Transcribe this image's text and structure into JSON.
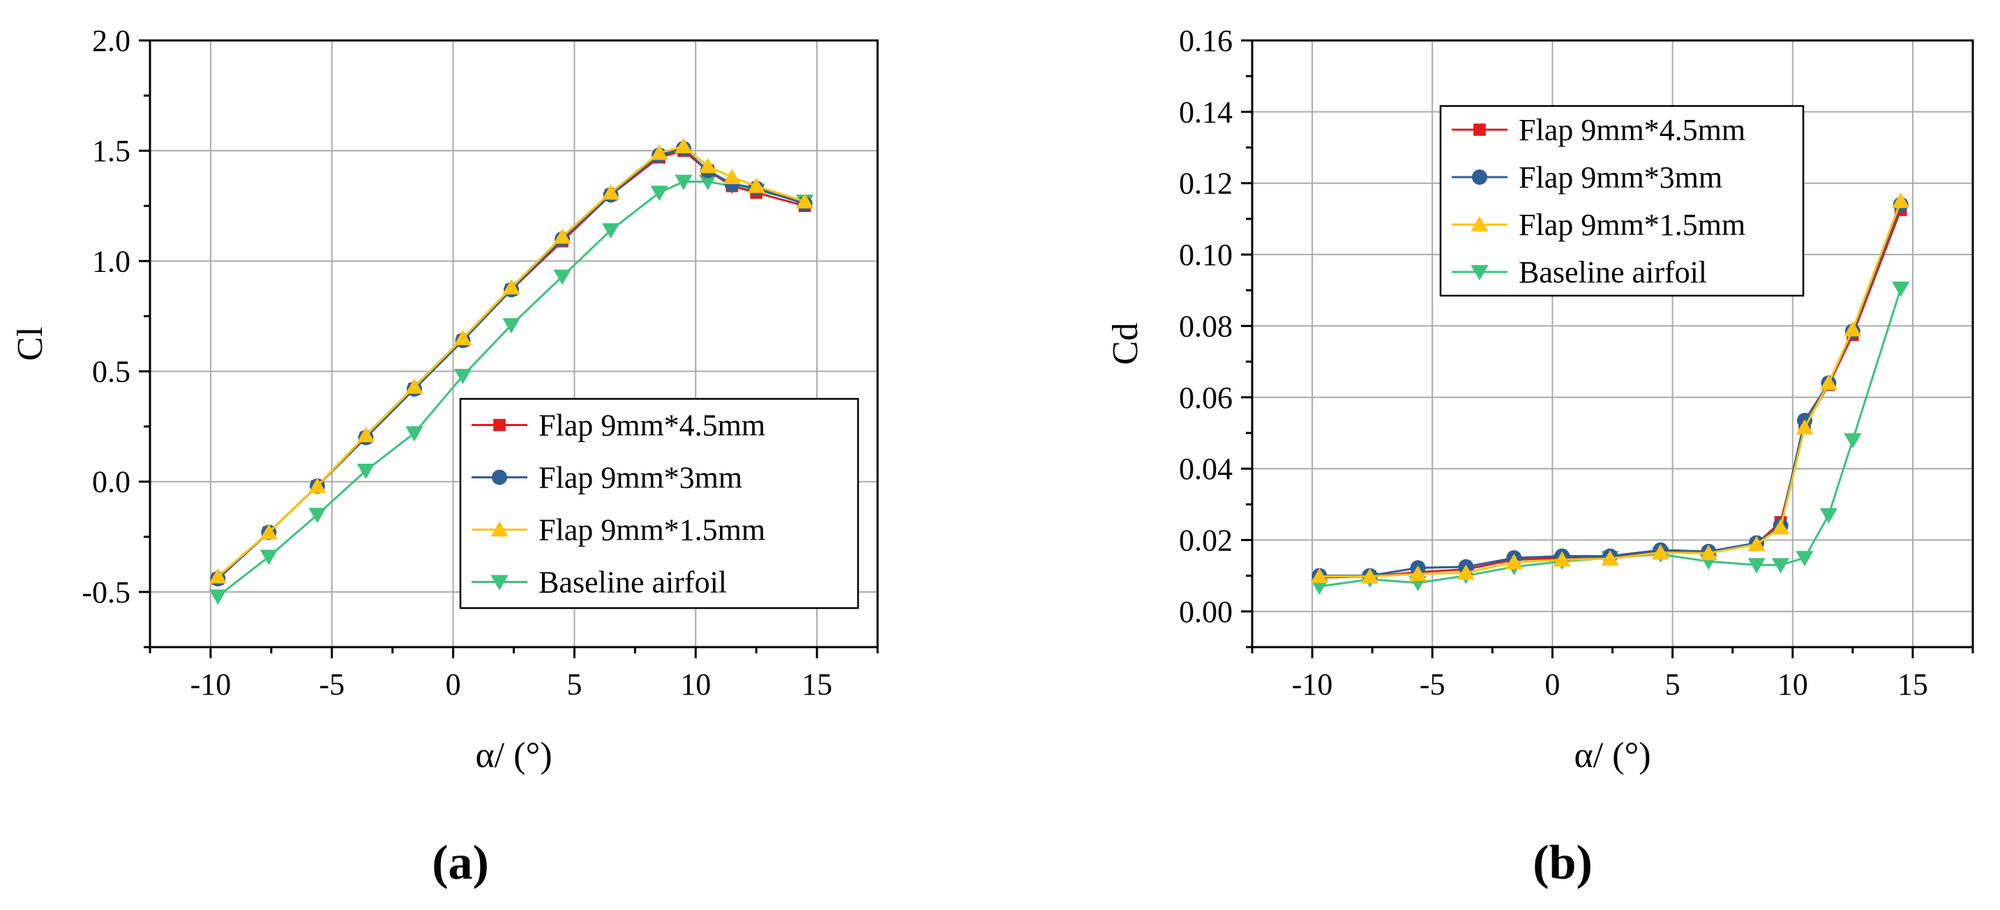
{
  "colors": {
    "flap45": "#e41a1c",
    "flap3": "#2e5f96",
    "flap15": "#ffc20e",
    "baseline": "#3cc47c",
    "grid": "#aaaaaa",
    "axis": "#000000"
  },
  "panel_labels": {
    "a": "a",
    "b": "b"
  },
  "chart_data": [
    {
      "type": "line",
      "panel": "a",
      "title": "",
      "xlabel": "α/ (°)",
      "ylabel": "Cl",
      "xlim": [
        -12.5,
        17.5
      ],
      "ylim": [
        -0.75,
        2.0
      ],
      "xticks": [
        -10,
        -5,
        0,
        5,
        10,
        15
      ],
      "xtick_labels": [
        "-10",
        "-5",
        "0",
        "5",
        "10",
        "15"
      ],
      "yticks": [
        -0.5,
        0.0,
        0.5,
        1.0,
        1.5,
        2.0
      ],
      "ytick_labels": [
        "-0.5",
        "0.0",
        "0.5",
        "1.0",
        "1.5",
        "2.0"
      ],
      "grid": true,
      "legend_position": "lower-right",
      "x": [
        -9.7,
        -7.6,
        -5.6,
        -3.6,
        -1.6,
        0.4,
        2.4,
        4.5,
        6.5,
        8.5,
        9.5,
        10.5,
        11.5,
        12.5,
        14.5
      ],
      "series": [
        {
          "name": "Flap 9mm*4.5mm",
          "color_key": "flap45",
          "marker": "square",
          "values": [
            -0.44,
            -0.23,
            -0.02,
            0.2,
            0.42,
            0.64,
            0.87,
            1.09,
            1.3,
            1.47,
            1.5,
            1.41,
            1.34,
            1.31,
            1.25
          ]
        },
        {
          "name": "Flap 9mm*3mm",
          "color_key": "flap3",
          "marker": "circle",
          "values": [
            -0.44,
            -0.23,
            -0.02,
            0.2,
            0.42,
            0.64,
            0.87,
            1.1,
            1.3,
            1.48,
            1.51,
            1.41,
            1.35,
            1.33,
            1.26
          ]
        },
        {
          "name": "Flap 9mm*1.5mm",
          "color_key": "flap15",
          "marker": "triangle-up",
          "values": [
            -0.43,
            -0.23,
            -0.02,
            0.21,
            0.43,
            0.65,
            0.88,
            1.11,
            1.31,
            1.49,
            1.52,
            1.43,
            1.38,
            1.34,
            1.27
          ]
        },
        {
          "name": "Baseline airfoil",
          "color_key": "baseline",
          "marker": "triangle-down",
          "values": [
            -0.52,
            -0.34,
            -0.15,
            0.05,
            0.22,
            0.48,
            0.71,
            0.93,
            1.14,
            1.31,
            1.36,
            1.36,
            1.34,
            1.32,
            1.27
          ]
        }
      ]
    },
    {
      "type": "line",
      "panel": "b",
      "title": "",
      "xlabel": "α/ (°)",
      "ylabel": "Cd",
      "xlim": [
        -12.5,
        17.5
      ],
      "ylim": [
        -0.01,
        0.16
      ],
      "xticks": [
        -10,
        -5,
        0,
        5,
        10,
        15
      ],
      "xtick_labels": [
        "-10",
        "-5",
        "0",
        "5",
        "10",
        "15"
      ],
      "yticks": [
        0.0,
        0.02,
        0.04,
        0.06,
        0.08,
        0.1,
        0.12,
        0.14,
        0.16
      ],
      "ytick_labels": [
        "0.00",
        "0.02",
        "0.04",
        "0.06",
        "0.08",
        "0.10",
        "0.12",
        "0.14",
        "0.16"
      ],
      "grid": true,
      "legend_position": "upper-left",
      "x": [
        -9.7,
        -7.6,
        -5.6,
        -3.6,
        -1.6,
        0.4,
        2.4,
        4.5,
        6.5,
        8.5,
        9.5,
        10.5,
        11.5,
        12.5,
        14.5
      ],
      "series": [
        {
          "name": "Flap 9mm*4.5mm",
          "color_key": "flap45",
          "marker": "square",
          "values": [
            0.0095,
            0.0098,
            0.011,
            0.0118,
            0.0145,
            0.015,
            0.0152,
            0.0168,
            0.0165,
            0.019,
            0.025,
            0.052,
            0.0635,
            0.0775,
            0.1125
          ]
        },
        {
          "name": "Flap 9mm*3mm",
          "color_key": "flap3",
          "marker": "circle",
          "values": [
            0.01,
            0.01,
            0.0122,
            0.0125,
            0.015,
            0.0155,
            0.0155,
            0.0172,
            0.0168,
            0.0192,
            0.024,
            0.0535,
            0.064,
            0.0785,
            0.114
          ]
        },
        {
          "name": "Flap 9mm*1.5mm",
          "color_key": "flap15",
          "marker": "triangle-up",
          "values": [
            0.0098,
            0.0098,
            0.0105,
            0.0108,
            0.0138,
            0.0145,
            0.0148,
            0.0165,
            0.0163,
            0.0188,
            0.0235,
            0.0515,
            0.064,
            0.079,
            0.115
          ]
        },
        {
          "name": "Baseline airfoil",
          "color_key": "baseline",
          "marker": "triangle-down",
          "values": [
            0.007,
            0.009,
            0.008,
            0.01,
            0.0125,
            0.014,
            0.015,
            0.016,
            0.014,
            0.013,
            0.013,
            0.015,
            0.027,
            0.048,
            0.0905
          ]
        }
      ]
    }
  ]
}
